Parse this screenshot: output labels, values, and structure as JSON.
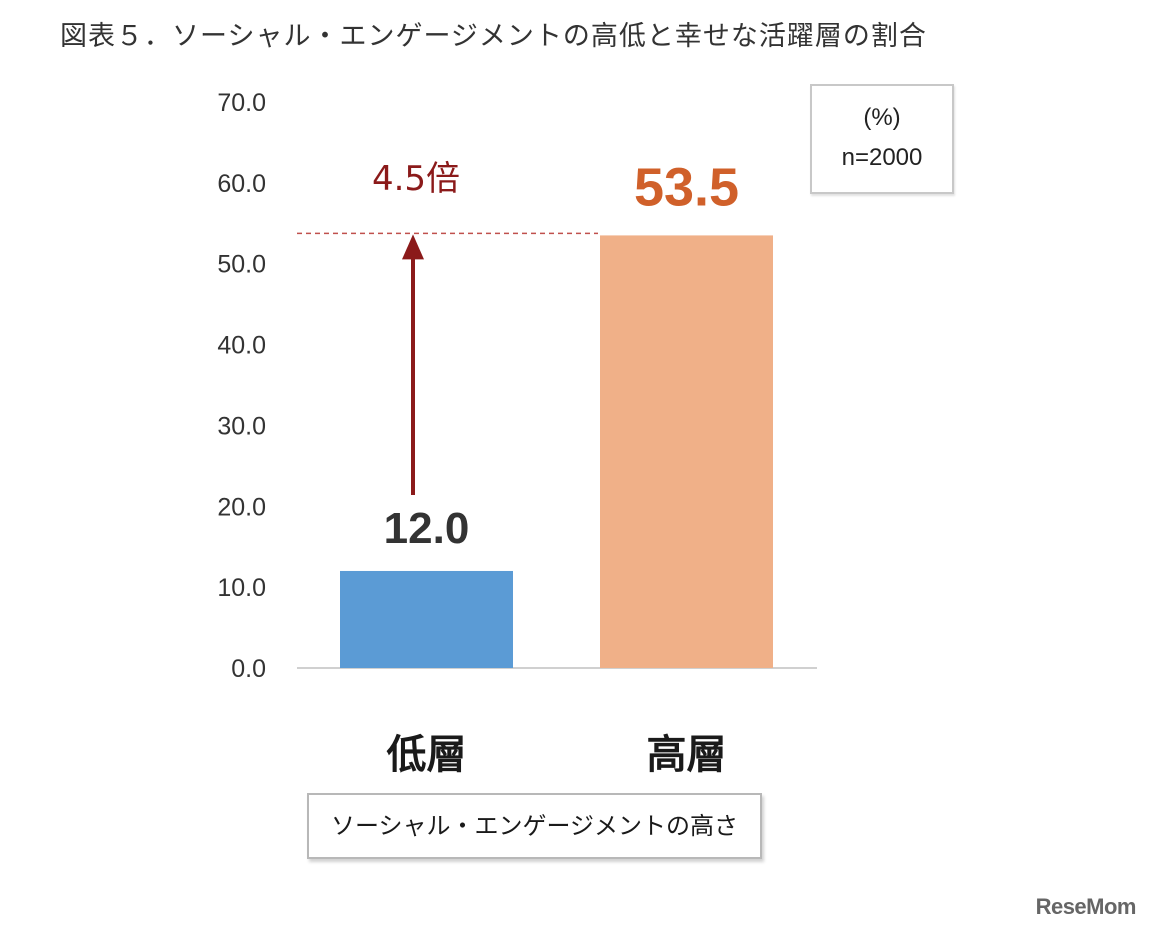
{
  "title": "図表５．ソーシャル・エンゲージメントの高低と幸せな活躍層の割合",
  "unit_label": "(%)",
  "sample_label": "n=2000",
  "xaxis_label": "ソーシャル・エンゲージメントの高さ",
  "watermark": "ReseMom",
  "colors": {
    "low_bar": "#5b9bd5",
    "high_bar": "#f0b088",
    "arrow": "#8b1a1a",
    "low_value": "#333333",
    "high_value": "#d0602a",
    "axis": "#d0d0d0",
    "dashed": "#c0504d"
  },
  "chart_data": {
    "type": "bar",
    "categories": [
      "低層",
      "高層"
    ],
    "values": [
      12.0,
      53.5
    ],
    "value_labels": [
      "12.0",
      "53.5"
    ],
    "ylim": [
      0,
      70
    ],
    "yticks": [
      "0.0",
      "10.0",
      "20.0",
      "30.0",
      "40.0",
      "50.0",
      "60.0",
      "70.0"
    ],
    "grid": false,
    "annotation": "4.5倍"
  }
}
